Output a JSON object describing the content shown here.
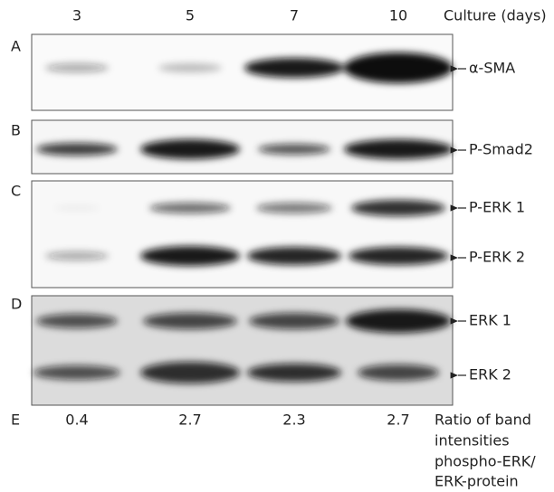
{
  "columns": {
    "header": [
      3,
      5,
      7,
      10
    ],
    "unit_label": "Culture (days)"
  },
  "panels": [
    {
      "letter": "A",
      "bands": [
        "α-SMA"
      ]
    },
    {
      "letter": "B",
      "bands": [
        "P-Smad2"
      ]
    },
    {
      "letter": "C",
      "bands": [
        "P-ERK 1",
        "P-ERK 2"
      ]
    },
    {
      "letter": "D",
      "bands": [
        "ERK 1",
        "ERK 2"
      ]
    }
  ],
  "ratio_row": {
    "letter": "E",
    "values": [
      0.4,
      2.7,
      2.3,
      2.7
    ],
    "label": [
      "Ratio of band",
      "intensities",
      "phospho-ERK/",
      "ERK-protein"
    ]
  }
}
